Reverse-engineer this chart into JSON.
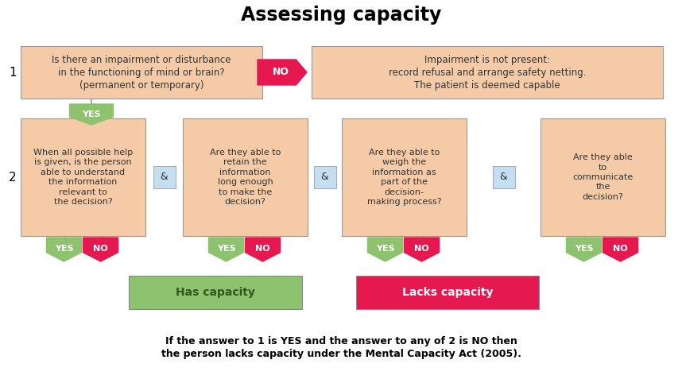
{
  "title": "Assessing capacity",
  "title_fontsize": 17,
  "bg_color": "#ffffff",
  "box_orange": "#F5CBA7",
  "box_green": "#8DC26F",
  "box_pink": "#E5184F",
  "box_blue": "#C5DFF0",
  "text_dark": "#333333",
  "label1": "1",
  "label2": "2",
  "r1b1_text": "Is there an impairment or disturbance\nin the functioning of mind or brain?\n(permanent or temporary)",
  "r1_no": "NO",
  "r1b2_text": "Impairment is not present:\nrecord refusal and arrange safety netting.\nThe patient is deemed capable",
  "r1_yes": "YES",
  "r2b1_text": "When all possible help\nis given, is the person\nable to understand\nthe information\nrelevant to\nthe decision?",
  "r2b2_text": "Are they able to\nretain the\ninformation\nlong enough\nto make the\ndecision?",
  "r2b3_text": "Are they able to\nweigh the\ninformation as\npart of the\ndecision-\nmaking process?",
  "r2b4_text": "Are they able\nto\ncommunicate\nthe\ndecision?",
  "amp": "&",
  "yes": "YES",
  "no": "NO",
  "outcome_green": "Has capacity",
  "outcome_pink": "Lacks capacity",
  "footer": "If the answer to 1 is YES and the answer to any of 2 is NO then\nthe person lacks capacity under the Mental Capacity Act (2005).",
  "footer_fs": 9,
  "text_fs": 8,
  "label_fs": 11,
  "small_fs": 8
}
